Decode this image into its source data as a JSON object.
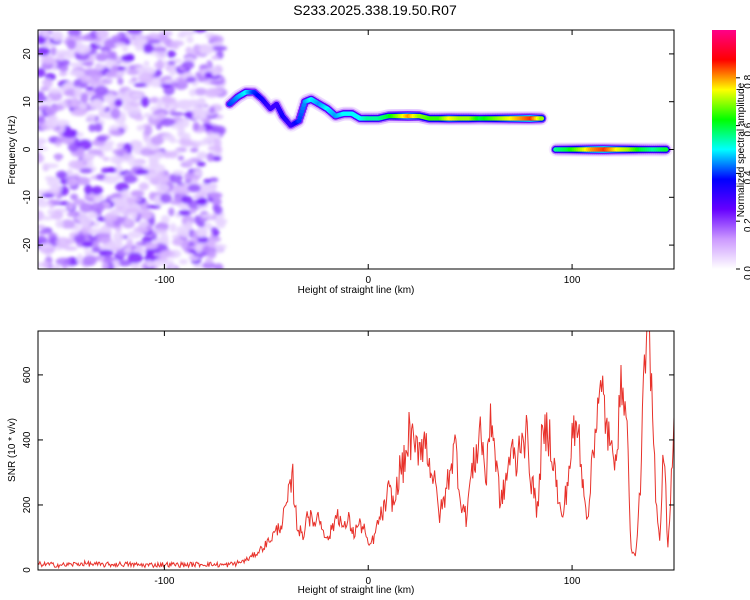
{
  "title": "S233.2025.338.19.50.R07",
  "colors": {
    "signal": "#e8322b",
    "noise": "#8a2be2",
    "axis": "#000000"
  },
  "chart_data": [
    {
      "type": "heatmap",
      "xlabel": "Height of straight line (km)",
      "ylabel": "Frequency (Hz)",
      "xlim": [
        -162,
        150
      ],
      "ylim": [
        -25,
        25
      ],
      "x_ticks": [
        {
          "value": -100,
          "label": "-100"
        },
        {
          "value": 0,
          "label": "0"
        },
        {
          "value": 100,
          "label": "100"
        }
      ],
      "y_ticks": [
        {
          "value": -20,
          "label": "-20"
        },
        {
          "value": -10,
          "label": "-10"
        },
        {
          "value": 0,
          "label": "0"
        },
        {
          "value": 10,
          "label": "10"
        },
        {
          "value": 20,
          "label": "20"
        }
      ],
      "colorbar": {
        "label": "Normalized spectral amplitude",
        "range": [
          0,
          1
        ],
        "ticks": [
          {
            "value": 0.0,
            "label": "0.0"
          },
          {
            "value": 0.2,
            "label": "0.2"
          },
          {
            "value": 0.4,
            "label": "0.4"
          },
          {
            "value": 0.6,
            "label": "0.6"
          },
          {
            "value": 0.8,
            "label": "0.8"
          }
        ],
        "colors": [
          "#ffffff",
          "#cc99ff",
          "#6600ff",
          "#0000ff",
          "#00ffff",
          "#00ff00",
          "#ffff00",
          "#ff0000",
          "#ff0088"
        ]
      },
      "noise_region": {
        "x": [
          -162,
          -72
        ],
        "y": [
          -25,
          25
        ]
      },
      "ridge": [
        {
          "x": -68,
          "y": 9.5,
          "amp": 0.4
        },
        {
          "x": -64,
          "y": 11,
          "amp": 0.45
        },
        {
          "x": -60,
          "y": 12,
          "amp": 0.5
        },
        {
          "x": -56,
          "y": 12,
          "amp": 0.4
        },
        {
          "x": -52,
          "y": 10.5,
          "amp": 0.35
        },
        {
          "x": -48,
          "y": 8.5,
          "amp": 0.3
        },
        {
          "x": -45,
          "y": 9.5,
          "amp": 0.3
        },
        {
          "x": -42,
          "y": 7,
          "amp": 0.35
        },
        {
          "x": -38,
          "y": 5,
          "amp": 0.3
        },
        {
          "x": -34,
          "y": 6,
          "amp": 0.4
        },
        {
          "x": -31,
          "y": 10,
          "amp": 0.45
        },
        {
          "x": -28,
          "y": 10.5,
          "amp": 0.5
        },
        {
          "x": -24,
          "y": 9.5,
          "amp": 0.45
        },
        {
          "x": -20,
          "y": 8.5,
          "amp": 0.5
        },
        {
          "x": -16,
          "y": 7,
          "amp": 0.45
        },
        {
          "x": -12,
          "y": 7.5,
          "amp": 0.5
        },
        {
          "x": -8,
          "y": 7.5,
          "amp": 0.5
        },
        {
          "x": -4,
          "y": 6.5,
          "amp": 0.5
        },
        {
          "x": 0,
          "y": 6.5,
          "amp": 0.55
        },
        {
          "x": 5,
          "y": 6.5,
          "amp": 0.55
        },
        {
          "x": 10,
          "y": 7,
          "amp": 0.6
        },
        {
          "x": 15,
          "y": 7,
          "amp": 0.7
        },
        {
          "x": 20,
          "y": 7,
          "amp": 0.8
        },
        {
          "x": 25,
          "y": 7,
          "amp": 0.7
        },
        {
          "x": 30,
          "y": 6.5,
          "amp": 0.65
        },
        {
          "x": 35,
          "y": 6.5,
          "amp": 0.65
        },
        {
          "x": 40,
          "y": 6.5,
          "amp": 0.75
        },
        {
          "x": 45,
          "y": 6.5,
          "amp": 0.7
        },
        {
          "x": 50,
          "y": 6.5,
          "amp": 0.7
        },
        {
          "x": 55,
          "y": 6.5,
          "amp": 0.6
        },
        {
          "x": 60,
          "y": 6.5,
          "amp": 0.65
        },
        {
          "x": 65,
          "y": 6.5,
          "amp": 0.7
        },
        {
          "x": 70,
          "y": 6.5,
          "amp": 0.75
        },
        {
          "x": 75,
          "y": 6.5,
          "amp": 0.8
        },
        {
          "x": 80,
          "y": 6.5,
          "amp": 0.85
        },
        {
          "x": 85,
          "y": 6.5,
          "amp": 0.7
        },
        {
          "x": 92,
          "y": 0,
          "amp": 0.55
        },
        {
          "x": 98,
          "y": 0,
          "amp": 0.6
        },
        {
          "x": 104,
          "y": 0,
          "amp": 0.7
        },
        {
          "x": 110,
          "y": 0,
          "amp": 0.8
        },
        {
          "x": 116,
          "y": 0,
          "amp": 0.85
        },
        {
          "x": 122,
          "y": 0,
          "amp": 0.75
        },
        {
          "x": 128,
          "y": 0,
          "amp": 0.7
        },
        {
          "x": 134,
          "y": 0,
          "amp": 0.6
        },
        {
          "x": 140,
          "y": 0,
          "amp": 0.55
        },
        {
          "x": 146,
          "y": 0,
          "amp": 0.6
        }
      ]
    },
    {
      "type": "line",
      "xlabel": "Height of straight line (km)",
      "ylabel": "SNR (10 * v/v)",
      "xlim": [
        -162,
        150
      ],
      "ylim": [
        0,
        735
      ],
      "x_ticks": [
        {
          "value": -100,
          "label": "-100"
        },
        {
          "value": 0,
          "label": "0"
        },
        {
          "value": 100,
          "label": "100"
        }
      ],
      "y_ticks": [
        {
          "value": 0,
          "label": "0"
        },
        {
          "value": 200,
          "label": "200"
        },
        {
          "value": 400,
          "label": "400"
        },
        {
          "value": 600,
          "label": "600"
        }
      ],
      "series": [
        {
          "x": [
            -162,
            -150,
            -140,
            -130,
            -120,
            -110,
            -100,
            -90,
            -80,
            -70,
            -65,
            -60,
            -55,
            -50,
            -45,
            -42,
            -40,
            -37,
            -35,
            -32,
            -30,
            -27,
            -25,
            -22,
            -20,
            -17,
            -15,
            -12,
            -10,
            -7,
            -5,
            -2,
            0,
            3,
            5,
            8,
            10,
            13,
            15,
            18,
            20,
            23,
            25,
            28,
            30,
            33,
            35,
            38,
            40,
            43,
            45,
            48,
            50,
            53,
            55,
            58,
            60,
            63,
            65,
            68,
            70,
            73,
            75,
            78,
            80,
            83,
            85,
            88,
            90,
            93,
            95,
            98,
            100,
            103,
            105,
            108,
            110,
            113,
            115,
            118,
            120,
            123,
            125,
            127,
            129,
            131,
            133,
            135,
            137,
            139,
            141,
            143,
            145,
            147,
            150
          ],
          "y": [
            18,
            15,
            20,
            16,
            18,
            15,
            17,
            16,
            18,
            15,
            20,
            30,
            50,
            80,
            120,
            150,
            200,
            280,
            140,
            100,
            180,
            140,
            170,
            130,
            90,
            140,
            180,
            120,
            160,
            110,
            140,
            130,
            70,
            100,
            150,
            190,
            240,
            200,
            300,
            330,
            420,
            360,
            390,
            400,
            340,
            250,
            170,
            230,
            320,
            380,
            230,
            160,
            270,
            360,
            440,
            270,
            500,
            310,
            200,
            290,
            370,
            320,
            430,
            400,
            280,
            180,
            380,
            440,
            380,
            230,
            150,
            280,
            400,
            440,
            300,
            140,
            380,
            500,
            540,
            400,
            330,
            460,
            620,
            420,
            60,
            40,
            200,
            520,
            735,
            540,
            250,
            90,
            400,
            60,
            470
          ]
        }
      ]
    }
  ]
}
